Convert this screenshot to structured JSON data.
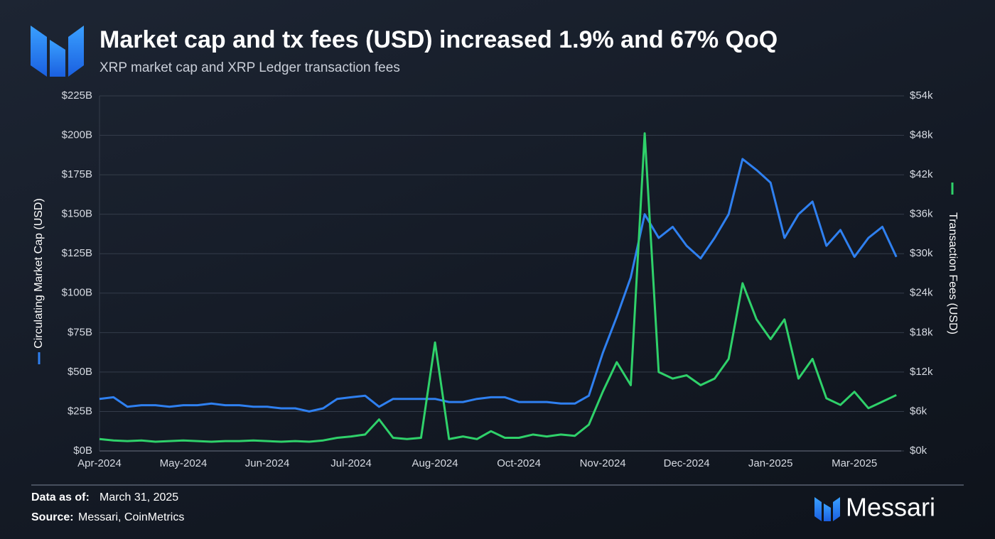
{
  "chart_data": {
    "type": "line",
    "title": "Market cap and tx fees (USD) increased 1.9% and 67% QoQ",
    "subtitle": "XRP market cap and XRP Ledger transaction fees",
    "categories": [
      "Apr-2024",
      null,
      null,
      null,
      null,
      null,
      "May-2024",
      null,
      null,
      null,
      null,
      null,
      "Jun-2024",
      null,
      null,
      null,
      null,
      null,
      "Jul-2024",
      null,
      null,
      null,
      null,
      null,
      "Aug-2024",
      null,
      null,
      null,
      null,
      null,
      "Oct-2024",
      null,
      null,
      null,
      null,
      null,
      "Nov-2024",
      null,
      null,
      null,
      null,
      null,
      "Dec-2024",
      null,
      null,
      null,
      null,
      null,
      "Jan-2025",
      null,
      null,
      null,
      null,
      null,
      "Mar-2025",
      null,
      null,
      null
    ],
    "series": [
      {
        "name": "Circulating Market Cap (USD)",
        "color": "#2f80f0",
        "axis": "y",
        "values": [
          33,
          34,
          28,
          29,
          29,
          28,
          29,
          29,
          30,
          29,
          29,
          28,
          28,
          27,
          27,
          25,
          27,
          33,
          34,
          35,
          28,
          33,
          33,
          33,
          33,
          31,
          31,
          33,
          34,
          34,
          31,
          31,
          31,
          30,
          30,
          35,
          62,
          85,
          110,
          150,
          135,
          142,
          130,
          122,
          135,
          150,
          185,
          178,
          170,
          135,
          150,
          158,
          130,
          140,
          123,
          135,
          142,
          123
        ]
      },
      {
        "name": "Transaction Fees (USD)",
        "color": "#2fd16a",
        "axis": "y2",
        "values": [
          1.8,
          1.6,
          1.5,
          1.6,
          1.4,
          1.5,
          1.6,
          1.5,
          1.4,
          1.5,
          1.5,
          1.6,
          1.5,
          1.4,
          1.5,
          1.4,
          1.6,
          2.0,
          2.2,
          2.5,
          4.8,
          2.0,
          1.8,
          2.0,
          16.5,
          1.8,
          2.2,
          1.8,
          3.0,
          2.0,
          2.0,
          2.5,
          2.2,
          2.5,
          2.3,
          4.0,
          9.0,
          13.5,
          10,
          48.3,
          12,
          11,
          11.5,
          10,
          11,
          14,
          25.5,
          20,
          17,
          20,
          11,
          14,
          8,
          7,
          9,
          6.5,
          7.5,
          8.5
        ]
      }
    ],
    "ylim": [
      0,
      225
    ],
    "yticks": [
      {
        "value": 0,
        "label": "$0B"
      },
      {
        "value": 25,
        "label": "$25B"
      },
      {
        "value": 50,
        "label": "$50B"
      },
      {
        "value": 75,
        "label": "$75B"
      },
      {
        "value": 100,
        "label": "$100B"
      },
      {
        "value": 125,
        "label": "$125B"
      },
      {
        "value": 150,
        "label": "$150B"
      },
      {
        "value": 175,
        "label": "$175B"
      },
      {
        "value": 200,
        "label": "$200B"
      },
      {
        "value": 225,
        "label": "$225B"
      }
    ],
    "y2lim": [
      0,
      54
    ],
    "y2ticks": [
      {
        "value": 0,
        "label": "$0k"
      },
      {
        "value": 6,
        "label": "$6k"
      },
      {
        "value": 12,
        "label": "$12k"
      },
      {
        "value": 18,
        "label": "$18k"
      },
      {
        "value": 24,
        "label": "$24k"
      },
      {
        "value": 30,
        "label": "$30k"
      },
      {
        "value": 36,
        "label": "$36k"
      },
      {
        "value": 42,
        "label": "$42k"
      },
      {
        "value": 48,
        "label": "$48k"
      },
      {
        "value": 54,
        "label": "$54k"
      }
    ],
    "grid": true
  },
  "footer": {
    "data_as_of_label": "Data as of:",
    "data_as_of": "March 31, 2025",
    "source_label": "Source:",
    "source": "Messari, CoinMetrics",
    "brand": "Messari"
  }
}
